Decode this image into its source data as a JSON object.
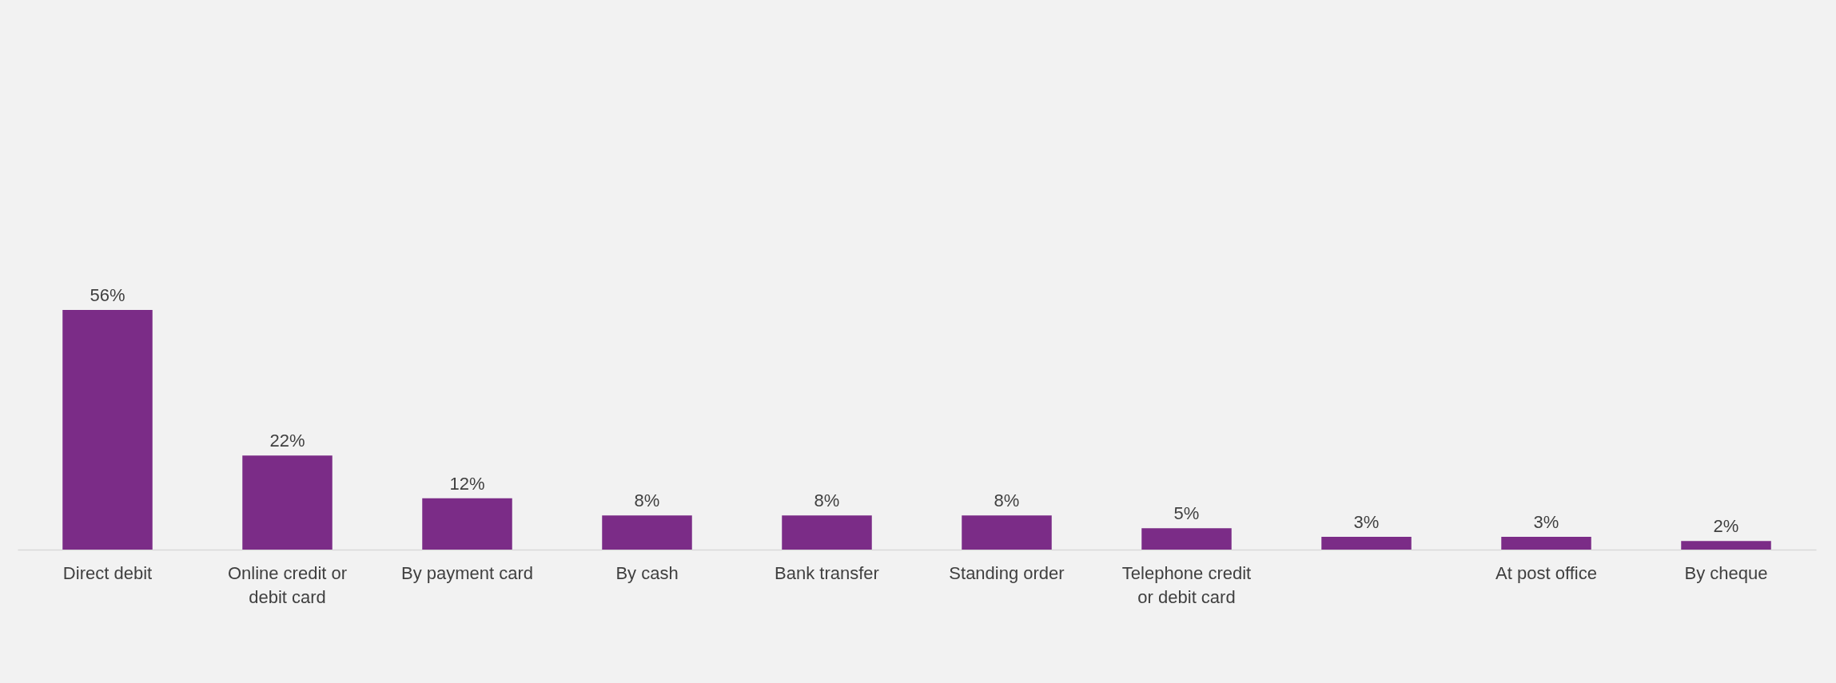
{
  "chart_data": {
    "type": "bar",
    "categories": [
      "Direct debit",
      "Online credit or debit card",
      "By payment card",
      "By cash",
      "Bank transfer",
      "Standing order",
      "Telephone credit or debit card",
      null,
      "At post office",
      "By cheque"
    ],
    "values": [
      56,
      22,
      12,
      8,
      8,
      8,
      5,
      3,
      3,
      2
    ],
    "value_labels": [
      "56%",
      "22%",
      "12%",
      "8%",
      "8%",
      "8%",
      "5%",
      "3%",
      "3%",
      "2%"
    ],
    "color": "#7b2c87",
    "grid": false
  }
}
